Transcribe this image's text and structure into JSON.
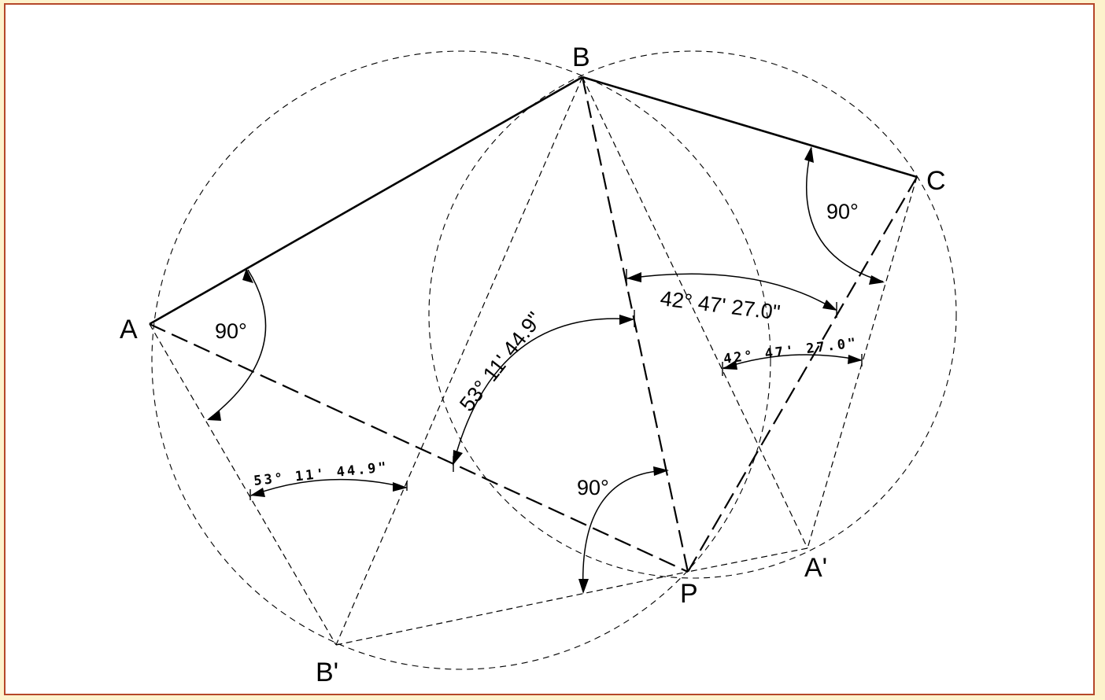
{
  "points": {
    "A": "A",
    "B": "B",
    "C": "C",
    "P": "P",
    "A_prime": "A'",
    "B_prime": "B'"
  },
  "angles": {
    "at_A": "90°",
    "at_C": "90°",
    "at_P": "90°",
    "APB_large": "53° 11' 44.9\"",
    "BPC_large": "42° 47' 27.0\"",
    "at_B_prime": "53° 11' 44.9\"",
    "at_A_prime": "42° 47' 27.0\""
  }
}
